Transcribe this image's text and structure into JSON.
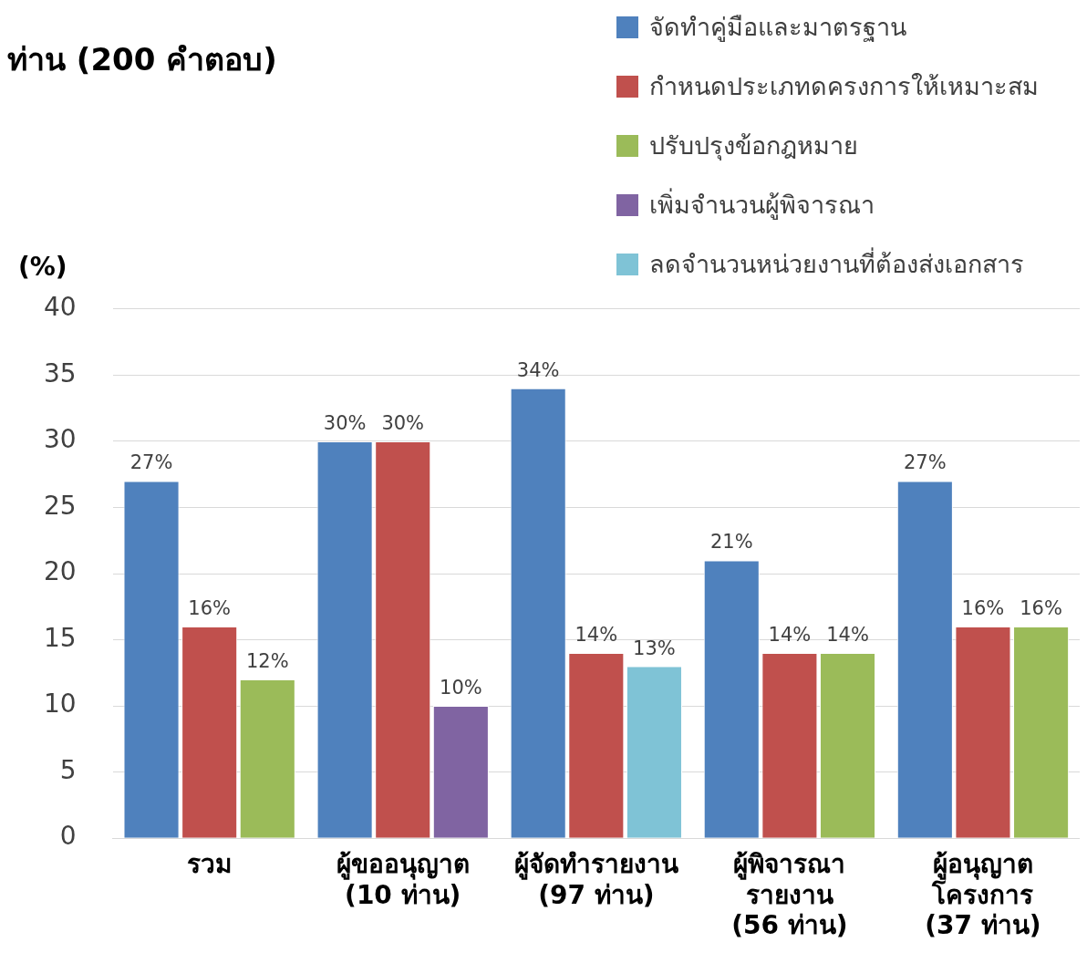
{
  "chart_data": {
    "type": "bar",
    "title": "ท่าน (200 คำตอบ)",
    "ylabel": "(%)",
    "categories": [
      "รวม",
      "ผู้ขออนุญาต\n(10 ท่าน)",
      "ผู้จัดทำรายงาน\n(97 ท่าน)",
      "ผู้พิจารณา\nรายงาน\n(56 ท่าน)",
      "ผู้อนุญาต\nโครงการ\n(37 ท่าน)"
    ],
    "series": [
      {
        "name": "จัดทำคู่มือและมาตรฐาน",
        "color": "#4f81bd",
        "values": [
          27,
          30,
          34,
          21,
          27
        ],
        "value_labels": [
          "27%",
          "30%",
          "34%",
          "21%",
          "27%"
        ]
      },
      {
        "name": "กำหนดประเภทดครงการให้เหมาะสม",
        "color": "#c0504d",
        "values": [
          16,
          30,
          14,
          14,
          16
        ],
        "value_labels": [
          "16%",
          "30%",
          "14%",
          "14%",
          "16%"
        ]
      },
      {
        "name": "ปรับปรุงข้อกฎหมาย",
        "color": "#9bbb59",
        "values": [
          12,
          null,
          null,
          14,
          16
        ],
        "value_labels": [
          "12%",
          null,
          null,
          "14%",
          "16%"
        ]
      },
      {
        "name": "เพิ่มจำนวนผู้พิจารณา",
        "color": "#8064a2",
        "values": [
          null,
          10,
          null,
          null,
          null
        ],
        "value_labels": [
          null,
          "10%",
          null,
          null,
          null
        ]
      },
      {
        "name": "ลดจำนวนหน่วยงานที่ต้องส่งเอกสาร",
        "color": "#7fc3d6",
        "values": [
          null,
          null,
          13,
          null,
          null
        ],
        "value_labels": [
          null,
          null,
          "13%",
          null,
          null
        ]
      }
    ],
    "ylim": [
      0,
      40
    ],
    "yticks": [
      0,
      5,
      10,
      15,
      20,
      25,
      30,
      35,
      40
    ],
    "grid": "y",
    "legend": "top right"
  }
}
